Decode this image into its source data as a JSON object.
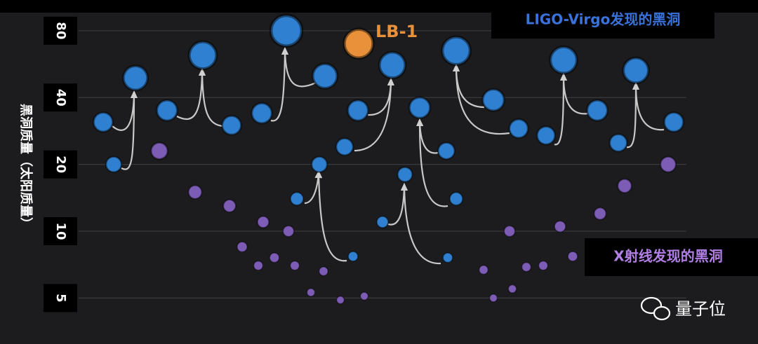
{
  "chart_data": {
    "type": "scatter",
    "y_label": "黑洞质量（太阳质量）",
    "log_y": true,
    "grid": true,
    "xlim": [
      0,
      108
    ],
    "ylim": [
      4.4,
      110
    ],
    "yticks": [
      5,
      10,
      20,
      40,
      80
    ],
    "series": [
      {
        "name": "LIGO-Virgo发现的黑洞",
        "color": "#2f80d0",
        "x": [
          14.7,
          16.2,
          19.3,
          23.8,
          28.9,
          33,
          37.3,
          40.8,
          42.3,
          45.5,
          46.3,
          49.1,
          50.3,
          51,
          54.5,
          55.9,
          57.7,
          59.8,
          63.6,
          63.8,
          65,
          65,
          70.3,
          73.9,
          77.8,
          80.3,
          85.1,
          88.1,
          90.6,
          96
        ],
        "values": [
          31,
          20,
          49,
          35,
          62,
          30,
          34,
          80,
          14,
          20,
          50,
          24,
          7.7,
          35,
          11,
          56,
          18,
          36,
          23,
          7.6,
          14,
          65,
          39,
          29,
          27,
          59,
          35,
          25,
          53,
          31
        ]
      },
      {
        "name": "X射线发现的黑洞",
        "color": "#7d5cb6",
        "x": [
          22.7,
          27.8,
          32.7,
          34.5,
          36.8,
          37.5,
          39.1,
          41.1,
          42,
          44.3,
          46.1,
          48.5,
          51.9,
          68.9,
          70.3,
          72.6,
          73,
          75,
          77.4,
          79.8,
          81.6,
          85.5,
          89,
          95.2
        ],
        "values": [
          23,
          15,
          13,
          8.5,
          7.0,
          11,
          7.6,
          10,
          7.0,
          5.3,
          6.6,
          4.9,
          5.1,
          6.7,
          5.0,
          10,
          5.5,
          6.9,
          7.0,
          10.5,
          7.7,
          12,
          16,
          20
        ]
      },
      {
        "name": "LB-1",
        "color": "#e8913a",
        "x": [
          51.1
        ],
        "values": [
          70
        ]
      }
    ]
  },
  "watermark": "量子位"
}
